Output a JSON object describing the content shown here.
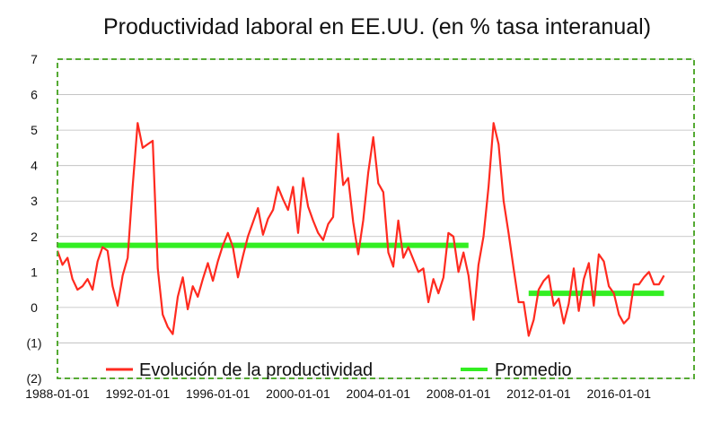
{
  "chart_data": {
    "type": "line",
    "title": "Productividad laboral en EE.UU. (en % tasa interanual)",
    "xlabel": "",
    "ylabel": "",
    "xlim": [
      "1988-01-01",
      "2019-10-01"
    ],
    "ylim": [
      -2,
      7
    ],
    "yticks": [
      7,
      6,
      5,
      4,
      3,
      2,
      1,
      0,
      -1,
      -2
    ],
    "ytick_labels": [
      "7",
      "6",
      "5",
      "4",
      "3",
      "2",
      "1",
      "0",
      "(1)",
      "(2)"
    ],
    "xticks": [
      "1988-01-01",
      "1992-01-01",
      "1996-01-01",
      "2000-01-01",
      "2004-01-01",
      "2008-01-01",
      "2012-01-01",
      "2016-01-01"
    ],
    "grid": "horizontal",
    "legend_position": "bottom",
    "colors": {
      "productivity": "#ff2a1f",
      "average": "#33ee22",
      "grid": "#bbbbbb",
      "frame": "#55aa33"
    },
    "series": [
      {
        "name": "Evolución de la productividad",
        "color": "#ff2a1f",
        "points": [
          [
            "1988-01-01",
            1.6
          ],
          [
            "1988-04-01",
            1.2
          ],
          [
            "1988-07-01",
            1.4
          ],
          [
            "1988-10-01",
            0.8
          ],
          [
            "1989-01-01",
            0.5
          ],
          [
            "1989-04-01",
            0.6
          ],
          [
            "1989-07-01",
            0.8
          ],
          [
            "1989-10-01",
            0.5
          ],
          [
            "1990-01-01",
            1.3
          ],
          [
            "1990-04-01",
            1.7
          ],
          [
            "1990-07-01",
            1.6
          ],
          [
            "1990-10-01",
            0.6
          ],
          [
            "1991-01-01",
            0.05
          ],
          [
            "1991-04-01",
            0.9
          ],
          [
            "1991-07-01",
            1.4
          ],
          [
            "1991-10-01",
            3.4
          ],
          [
            "1992-01-01",
            5.2
          ],
          [
            "1992-04-01",
            4.5
          ],
          [
            "1992-07-01",
            4.6
          ],
          [
            "1992-10-01",
            4.7
          ],
          [
            "1993-01-01",
            1.1
          ],
          [
            "1993-04-01",
            -0.2
          ],
          [
            "1993-07-01",
            -0.55
          ],
          [
            "1993-10-01",
            -0.75
          ],
          [
            "1994-01-01",
            0.3
          ],
          [
            "1994-04-01",
            0.85
          ],
          [
            "1994-07-01",
            -0.05
          ],
          [
            "1994-10-01",
            0.6
          ],
          [
            "1995-01-01",
            0.3
          ],
          [
            "1995-04-01",
            0.8
          ],
          [
            "1995-07-01",
            1.25
          ],
          [
            "1995-10-01",
            0.75
          ],
          [
            "1996-01-01",
            1.3
          ],
          [
            "1996-04-01",
            1.75
          ],
          [
            "1996-07-01",
            2.1
          ],
          [
            "1996-10-01",
            1.7
          ],
          [
            "1997-01-01",
            0.85
          ],
          [
            "1997-04-01",
            1.45
          ],
          [
            "1997-07-01",
            2.0
          ],
          [
            "1997-10-01",
            2.4
          ],
          [
            "1998-01-01",
            2.8
          ],
          [
            "1998-04-01",
            2.05
          ],
          [
            "1998-07-01",
            2.5
          ],
          [
            "1998-10-01",
            2.75
          ],
          [
            "1999-01-01",
            3.4
          ],
          [
            "1999-04-01",
            3.05
          ],
          [
            "1999-07-01",
            2.75
          ],
          [
            "1999-10-01",
            3.4
          ],
          [
            "2000-01-01",
            2.1
          ],
          [
            "2000-04-01",
            3.65
          ],
          [
            "2000-07-01",
            2.85
          ],
          [
            "2000-10-01",
            2.45
          ],
          [
            "2001-01-01",
            2.1
          ],
          [
            "2001-04-01",
            1.9
          ],
          [
            "2001-07-01",
            2.35
          ],
          [
            "2001-10-01",
            2.55
          ],
          [
            "2002-01-01",
            4.9
          ],
          [
            "2002-04-01",
            3.45
          ],
          [
            "2002-07-01",
            3.65
          ],
          [
            "2002-10-01",
            2.4
          ],
          [
            "2003-01-01",
            1.5
          ],
          [
            "2003-04-01",
            2.45
          ],
          [
            "2003-07-01",
            3.8
          ],
          [
            "2003-10-01",
            4.8
          ],
          [
            "2004-01-01",
            3.5
          ],
          [
            "2004-04-01",
            3.25
          ],
          [
            "2004-07-01",
            1.55
          ],
          [
            "2004-10-01",
            1.15
          ],
          [
            "2005-01-01",
            2.45
          ],
          [
            "2005-04-01",
            1.4
          ],
          [
            "2005-07-01",
            1.7
          ],
          [
            "2005-10-01",
            1.35
          ],
          [
            "2006-01-01",
            1.0
          ],
          [
            "2006-04-01",
            1.1
          ],
          [
            "2006-07-01",
            0.15
          ],
          [
            "2006-10-01",
            0.8
          ],
          [
            "2007-01-01",
            0.4
          ],
          [
            "2007-04-01",
            0.85
          ],
          [
            "2007-07-01",
            2.1
          ],
          [
            "2007-10-01",
            2.0
          ],
          [
            "2008-01-01",
            1.0
          ],
          [
            "2008-04-01",
            1.55
          ],
          [
            "2008-07-01",
            0.9
          ],
          [
            "2008-10-01",
            -0.35
          ],
          [
            "2009-01-01",
            1.2
          ],
          [
            "2009-04-01",
            2.0
          ],
          [
            "2009-07-01",
            3.4
          ],
          [
            "2009-10-01",
            5.2
          ],
          [
            "2010-01-01",
            4.6
          ],
          [
            "2010-04-01",
            3.0
          ],
          [
            "2010-07-01",
            2.1
          ],
          [
            "2010-10-01",
            1.1
          ],
          [
            "2011-01-01",
            0.15
          ],
          [
            "2011-04-01",
            0.15
          ],
          [
            "2011-07-01",
            -0.8
          ],
          [
            "2011-10-01",
            -0.35
          ],
          [
            "2012-01-01",
            0.5
          ],
          [
            "2012-04-01",
            0.75
          ],
          [
            "2012-07-01",
            0.9
          ],
          [
            "2012-10-01",
            0.05
          ],
          [
            "2013-01-01",
            0.25
          ],
          [
            "2013-04-01",
            -0.45
          ],
          [
            "2013-07-01",
            0.1
          ],
          [
            "2013-10-01",
            1.1
          ],
          [
            "2014-01-01",
            -0.1
          ],
          [
            "2014-04-01",
            0.8
          ],
          [
            "2014-07-01",
            1.25
          ],
          [
            "2014-10-01",
            0.05
          ],
          [
            "2015-01-01",
            1.5
          ],
          [
            "2015-04-01",
            1.3
          ],
          [
            "2015-07-01",
            0.6
          ],
          [
            "2015-10-01",
            0.4
          ],
          [
            "2016-01-01",
            -0.2
          ],
          [
            "2016-04-01",
            -0.45
          ],
          [
            "2016-07-01",
            -0.3
          ],
          [
            "2016-10-01",
            0.65
          ],
          [
            "2017-01-01",
            0.65
          ],
          [
            "2017-04-01",
            0.85
          ],
          [
            "2017-07-01",
            1.0
          ],
          [
            "2017-10-01",
            0.65
          ],
          [
            "2018-01-01",
            0.65
          ],
          [
            "2018-04-01",
            0.9
          ]
        ]
      },
      {
        "name": "Promedio",
        "color": "#33ee22",
        "segments": [
          {
            "x": [
              "1988-01-01",
              "2008-07-01"
            ],
            "y": 1.75
          },
          {
            "x": [
              "2011-07-01",
              "2018-04-01"
            ],
            "y": 0.4
          }
        ]
      }
    ]
  }
}
